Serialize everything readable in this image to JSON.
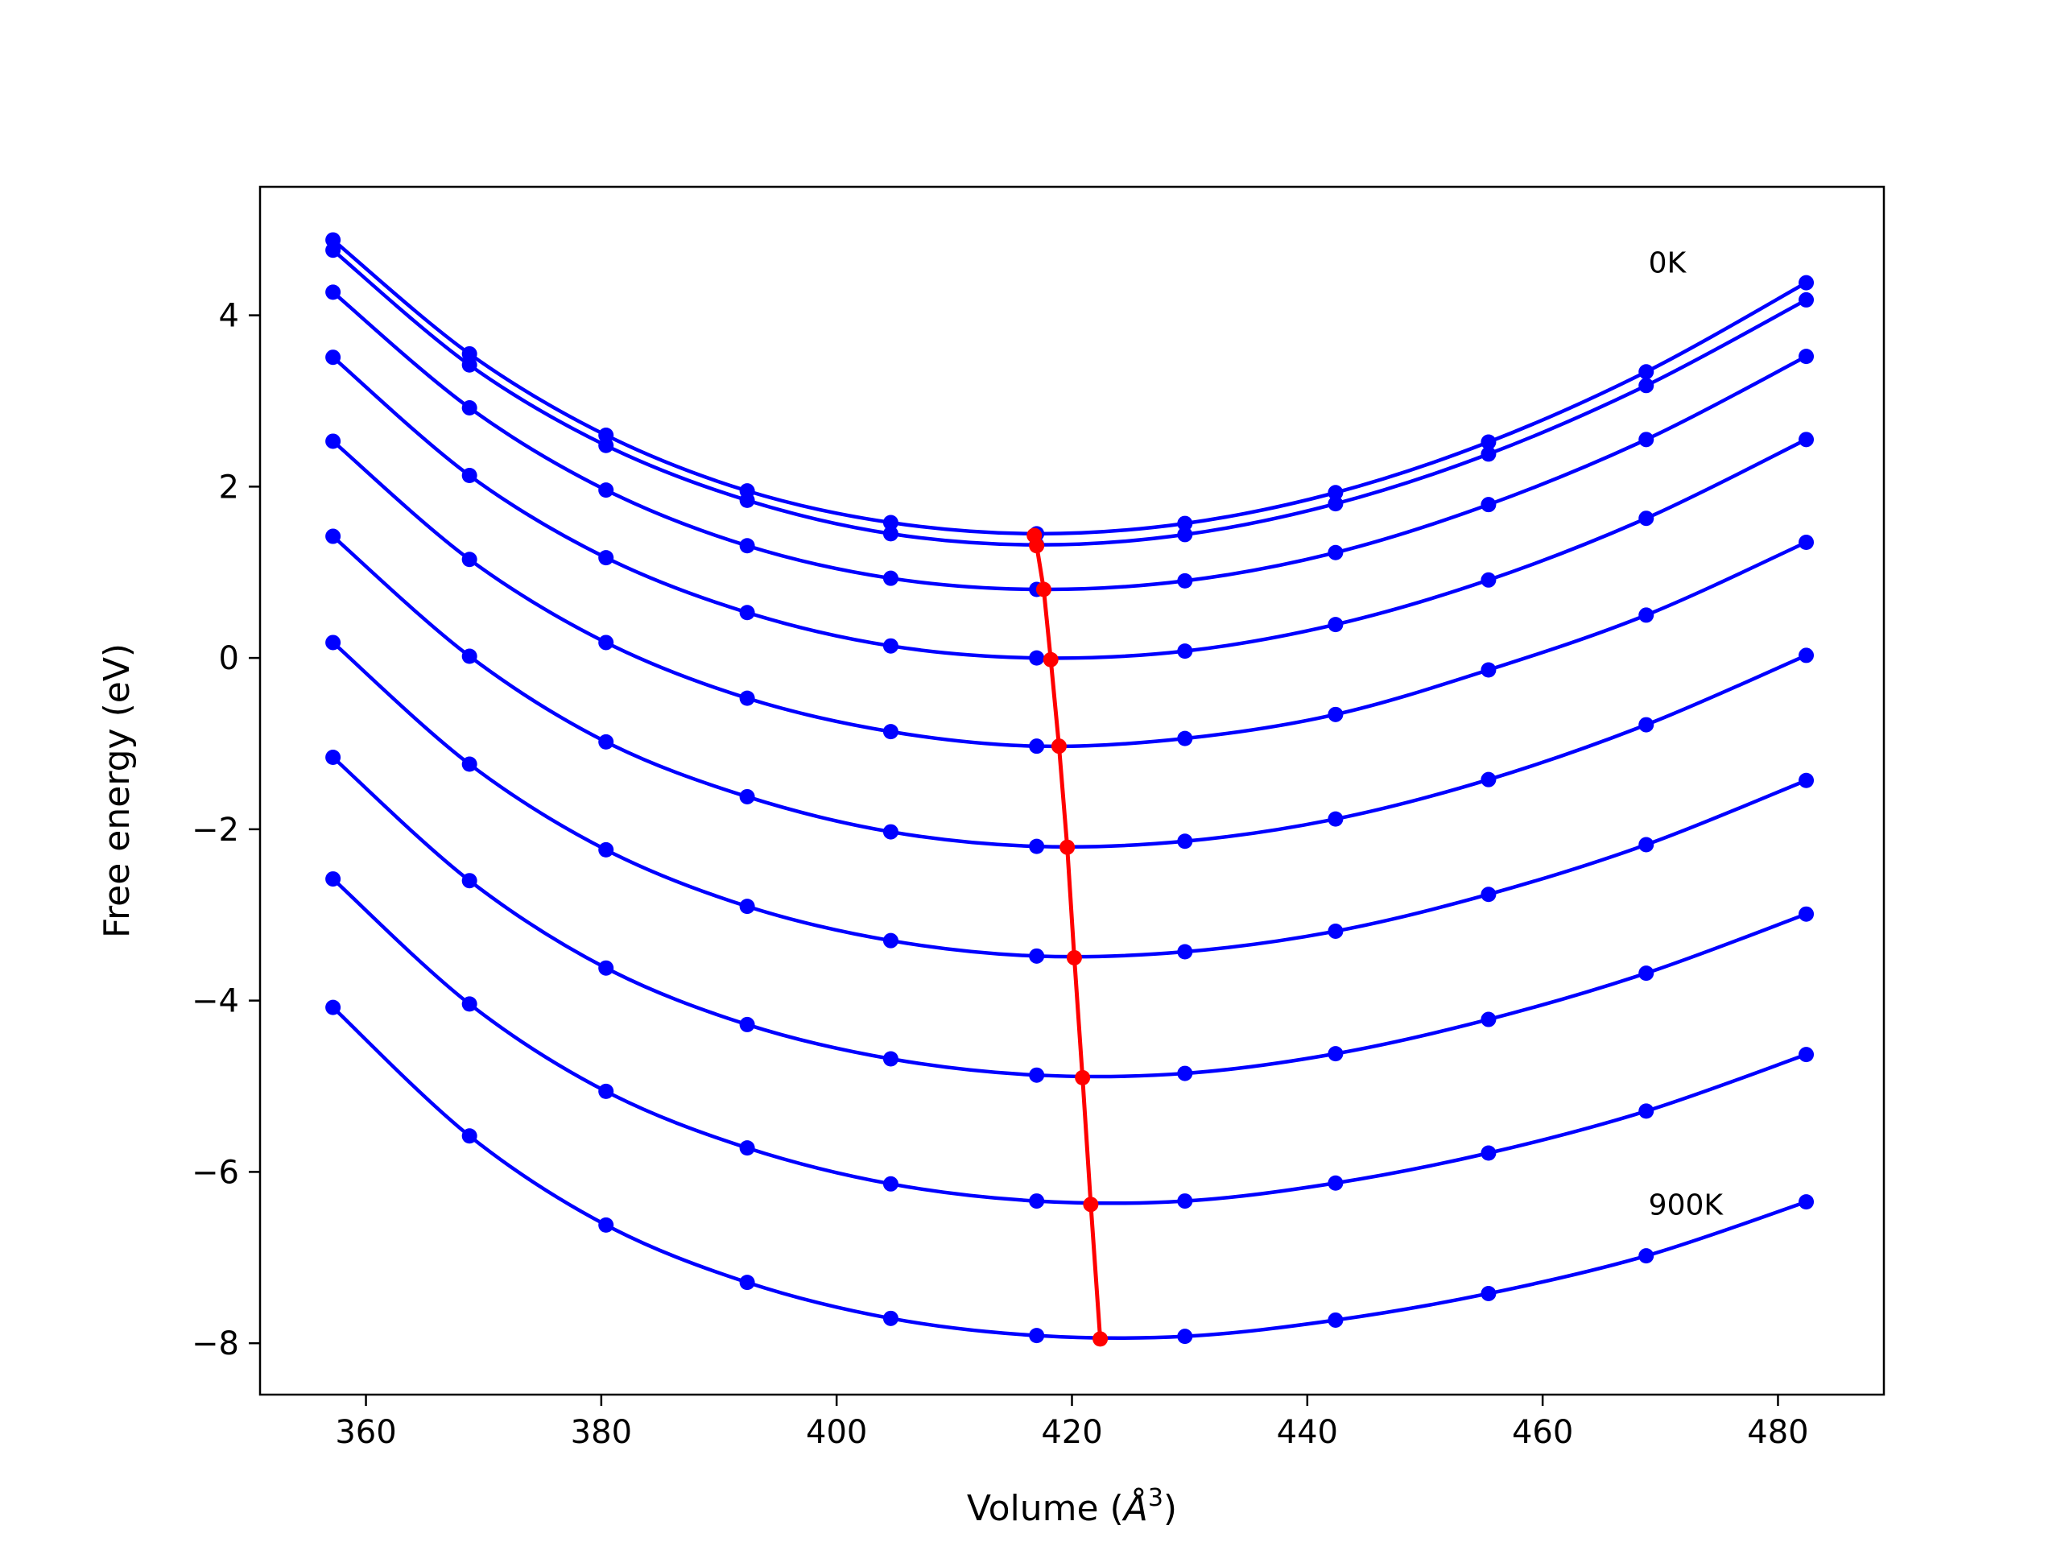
{
  "chart_data": {
    "type": "line",
    "xlabel": "Volume (",
    "xlabel_symbol": "Å",
    "xlabel_sup": "3",
    "xlabel_close": ")",
    "ylabel": "Free energy (eV)",
    "xlim": [
      351,
      489
    ],
    "ylim": [
      -8.6,
      5.5
    ],
    "xticks": [
      360,
      380,
      400,
      420,
      440,
      460,
      480
    ],
    "yticks": [
      -8,
      -6,
      -4,
      -2,
      0,
      2,
      4
    ],
    "grid": false,
    "annotations": [
      {
        "text": "0K",
        "x": 469,
        "y": 4.5
      },
      {
        "text": "900K",
        "x": 469,
        "y": -6.5
      }
    ],
    "series_color": "#0000ff",
    "trend_color": "#ff0000",
    "x": [
      357.2,
      368.8,
      380.4,
      392.4,
      404.6,
      417.0,
      429.6,
      442.4,
      455.4,
      468.8,
      482.4
    ],
    "series": [
      {
        "values": [
          4.88,
          3.55,
          2.6,
          1.95,
          1.58,
          1.45,
          1.57,
          1.93,
          2.52,
          3.34,
          4.38
        ]
      },
      {
        "values": [
          4.76,
          3.42,
          2.48,
          1.84,
          1.45,
          1.32,
          1.44,
          1.8,
          2.38,
          3.18,
          4.18
        ]
      },
      {
        "values": [
          4.27,
          2.92,
          1.96,
          1.31,
          0.93,
          0.8,
          0.9,
          1.23,
          1.79,
          2.55,
          3.52
        ]
      },
      {
        "values": [
          3.51,
          2.13,
          1.17,
          0.53,
          0.14,
          0.0,
          0.08,
          0.39,
          0.91,
          1.63,
          2.55
        ]
      },
      {
        "values": [
          2.53,
          1.15,
          0.18,
          -0.47,
          -0.86,
          -1.03,
          -0.94,
          -0.66,
          -0.14,
          0.5,
          1.35
        ]
      },
      {
        "values": [
          1.42,
          0.02,
          -0.98,
          -1.62,
          -2.03,
          -2.2,
          -2.14,
          -1.88,
          -1.42,
          -0.78,
          0.03
        ]
      },
      {
        "values": [
          0.18,
          -1.24,
          -2.24,
          -2.9,
          -3.3,
          -3.48,
          -3.43,
          -3.19,
          -2.76,
          -2.18,
          -1.43
        ]
      },
      {
        "values": [
          -1.16,
          -2.6,
          -3.62,
          -4.28,
          -4.68,
          -4.87,
          -4.85,
          -4.62,
          -4.22,
          -3.68,
          -2.99
        ]
      },
      {
        "values": [
          -2.58,
          -4.04,
          -5.06,
          -5.72,
          -6.14,
          -6.34,
          -6.34,
          -6.13,
          -5.78,
          -5.29,
          -4.63
        ]
      },
      {
        "values": [
          -4.08,
          -5.58,
          -6.62,
          -7.29,
          -7.71,
          -7.91,
          -7.92,
          -7.73,
          -7.42,
          -6.98,
          -6.35
        ]
      }
    ],
    "minima_series": {
      "x": [
        416.8,
        417.0,
        417.6,
        418.2,
        418.9,
        419.6,
        420.2,
        420.9,
        421.6,
        422.4
      ],
      "y": [
        1.43,
        1.31,
        0.8,
        -0.02,
        -1.03,
        -2.21,
        -3.5,
        -4.9,
        -6.38,
        -7.95
      ]
    }
  }
}
